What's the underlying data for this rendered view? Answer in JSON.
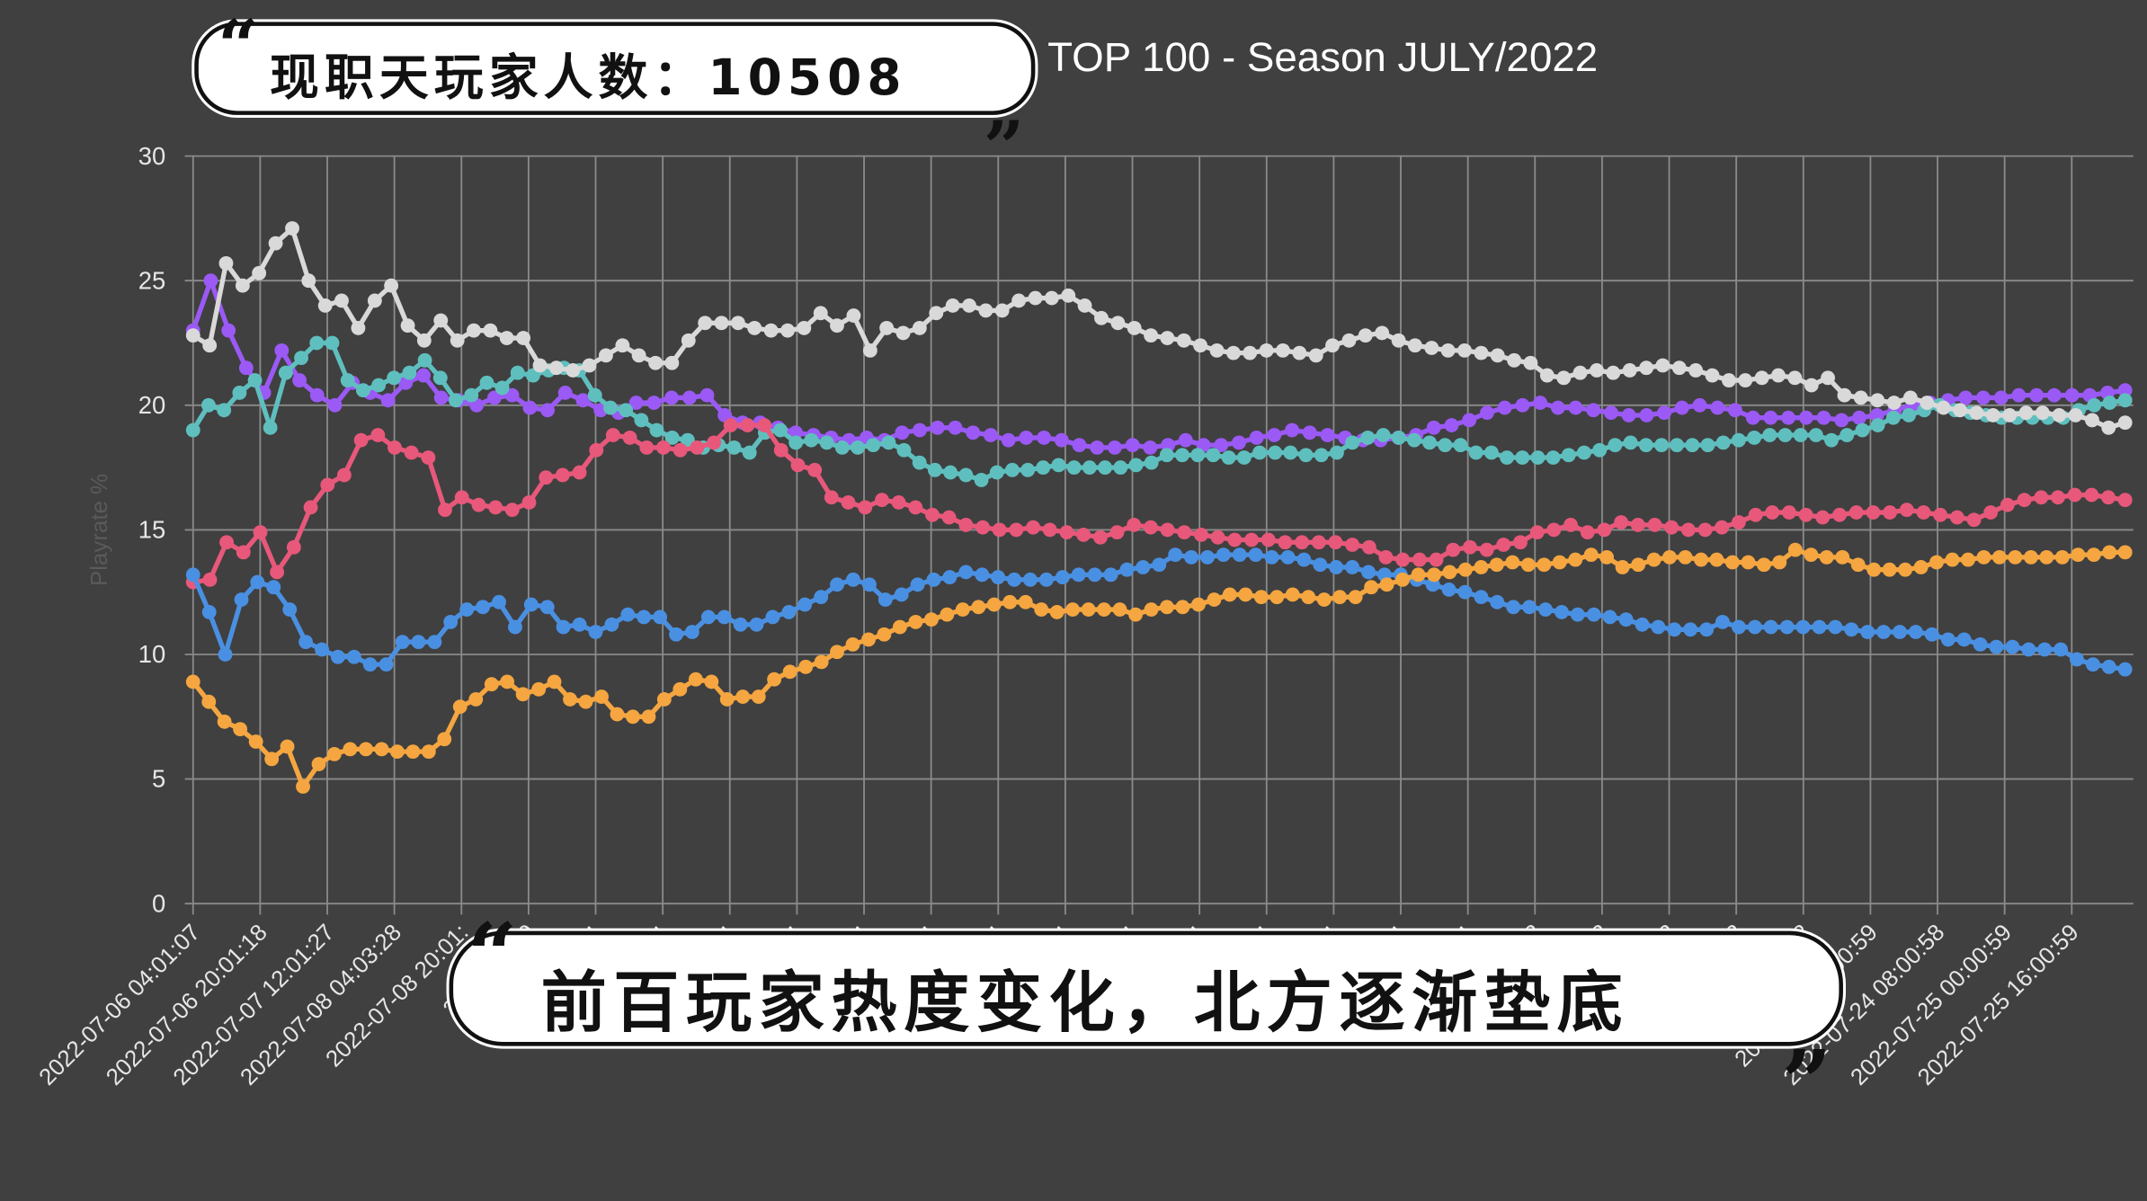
{
  "captions": {
    "top": "现职天玩家人数：10508",
    "bottom": "前百玩家热度变化，北方逐渐垫底",
    "open_quote": "“",
    "close_quote": "„"
  },
  "chart_data": {
    "type": "line",
    "title": "TOP 100 - Season JULY/2022",
    "xlabel": "",
    "ylabel": "Playrate %",
    "ylim": [
      0,
      30
    ],
    "yticks": [
      0,
      5,
      10,
      15,
      20,
      25,
      30
    ],
    "grid": true,
    "x_tick_labels": [
      "2022-07-06 04:01:07",
      "2022-07-06 20:01:18",
      "2022-07-07 12:01:27",
      "2022-07-08 04:03:28",
      "2022-07-08 20:01:",
      "2022-07-09",
      "2022-07-1",
      "2022-07-1",
      "2022-07-1",
      "2022-07-1",
      "2022-07-1",
      "2022-07-1",
      "2022-07-1",
      "2022-07-1",
      "2022-07-1",
      "2022-07-1",
      "2022-07-1",
      "2022-07-1",
      "2022-07-1",
      "2022-07-1",
      "2022-07-2",
      "2022-07-2",
      "2022-07-2",
      "2022-07-2",
      "2022-07-2",
      "2022-07-23 :00:59",
      "2022-07-24 08:00:58",
      "2022-07-25 00:00:59",
      "2022-07-25 16:00:59"
    ],
    "series": [
      {
        "color": "#9b59f5",
        "values": [
          23,
          25,
          23,
          21.5,
          20.5,
          22.2,
          21,
          20.4,
          20,
          20.9,
          20.5,
          20.2,
          20.9,
          21.2,
          20.3,
          20.2,
          20,
          20.3,
          20.4,
          19.9,
          19.8,
          20.5,
          20.2,
          19.8,
          19.7,
          20.1,
          20.1,
          20.3,
          20.3,
          20.4,
          19.6,
          19.3,
          19.3,
          19.1,
          18.9,
          18.8,
          18.7,
          18.6,
          18.7,
          18.6,
          18.9,
          19,
          19.1,
          19.1,
          18.9,
          18.8,
          18.6,
          18.7,
          18.7,
          18.6,
          18.4,
          18.3,
          18.3,
          18.4,
          18.3,
          18.4,
          18.6,
          18.4,
          18.4,
          18.5,
          18.7,
          18.8,
          19,
          18.9,
          18.8,
          18.7,
          18.6,
          18.6,
          18.7,
          18.8,
          19.1,
          19.2,
          19.4,
          19.7,
          19.9,
          20,
          20.1,
          19.9,
          19.9,
          19.8,
          19.7,
          19.6,
          19.6,
          19.7,
          19.9,
          20,
          19.9,
          19.8,
          19.5,
          19.5,
          19.5,
          19.5,
          19.5,
          19.4,
          19.5,
          19.6,
          19.8,
          20,
          20.1,
          20.2,
          20.3,
          20.3,
          20.3,
          20.4,
          20.4,
          20.4,
          20.4,
          20.4,
          20.5,
          20.6
        ]
      },
      {
        "color": "#5fbfbf",
        "values": [
          19,
          20,
          19.8,
          20.5,
          21,
          19.1,
          21.3,
          21.9,
          22.5,
          22.5,
          21,
          20.6,
          20.8,
          21.1,
          21.3,
          21.8,
          21.1,
          20.2,
          20.4,
          20.9,
          20.7,
          21.3,
          21.2,
          21.4,
          21.5,
          21.4,
          20.4,
          19.9,
          19.8,
          19.4,
          19,
          18.7,
          18.6,
          18.3,
          18.4,
          18.3,
          18.1,
          18.9,
          19,
          18.5,
          18.6,
          18.5,
          18.3,
          18.3,
          18.4,
          18.5,
          18.2,
          17.7,
          17.4,
          17.3,
          17.2,
          17,
          17.3,
          17.4,
          17.4,
          17.5,
          17.6,
          17.5,
          17.5,
          17.5,
          17.5,
          17.6,
          17.7,
          18,
          18,
          18,
          18,
          17.9,
          17.9,
          18.1,
          18.1,
          18.1,
          18,
          18,
          18.1,
          18.5,
          18.7,
          18.8,
          18.7,
          18.6,
          18.5,
          18.4,
          18.4,
          18.1,
          18.1,
          17.9,
          17.9,
          17.9,
          17.9,
          18,
          18.1,
          18.2,
          18.4,
          18.5,
          18.4,
          18.4,
          18.4,
          18.4,
          18.4,
          18.5,
          18.6,
          18.7,
          18.8,
          18.8,
          18.8,
          18.8,
          18.6,
          18.8,
          19,
          19.2,
          19.5,
          19.6,
          19.8,
          20,
          19.8,
          19.7,
          19.6,
          19.5,
          19.5,
          19.5,
          19.5,
          19.5,
          19.8,
          20,
          20.1,
          20.2
        ]
      },
      {
        "color": "#d9d9d9",
        "values": [
          22.8,
          22.4,
          25.7,
          24.8,
          25.3,
          26.5,
          27.1,
          25,
          24,
          24.2,
          23.1,
          24.2,
          24.8,
          23.2,
          22.6,
          23.4,
          22.6,
          23,
          23,
          22.7,
          22.7,
          21.6,
          21.5,
          21.4,
          21.6,
          22,
          22.4,
          22,
          21.7,
          21.7,
          22.6,
          23.3,
          23.3,
          23.3,
          23.1,
          23,
          23,
          23.1,
          23.7,
          23.2,
          23.6,
          22.2,
          23.1,
          22.9,
          23.1,
          23.7,
          24,
          24,
          23.8,
          23.8,
          24.2,
          24.3,
          24.3,
          24.4,
          24,
          23.5,
          23.3,
          23.1,
          22.8,
          22.7,
          22.6,
          22.4,
          22.2,
          22.1,
          22.1,
          22.2,
          22.2,
          22.1,
          22,
          22.4,
          22.6,
          22.8,
          22.9,
          22.6,
          22.4,
          22.3,
          22.2,
          22.2,
          22.1,
          22,
          21.8,
          21.7,
          21.2,
          21.1,
          21.3,
          21.4,
          21.3,
          21.4,
          21.5,
          21.6,
          21.5,
          21.4,
          21.2,
          21,
          21,
          21.1,
          21.2,
          21.1,
          20.8,
          21.1,
          20.4,
          20.3,
          20.2,
          20.1,
          20.3,
          20.1,
          19.9,
          19.8,
          19.7,
          19.6,
          19.6,
          19.7,
          19.7,
          19.6,
          19.6,
          19.4,
          19.1,
          19.3
        ]
      },
      {
        "color": "#e8587a",
        "values": [
          12.9,
          13,
          14.5,
          14.1,
          14.9,
          13.3,
          14.3,
          15.9,
          16.8,
          17.2,
          18.6,
          18.8,
          18.3,
          18.1,
          17.9,
          15.8,
          16.3,
          16,
          15.9,
          15.8,
          16.1,
          17.1,
          17.2,
          17.3,
          18.2,
          18.8,
          18.7,
          18.3,
          18.3,
          18.2,
          18.3,
          18.5,
          19.2,
          19.2,
          19.2,
          18.2,
          17.6,
          17.4,
          16.3,
          16.1,
          15.9,
          16.2,
          16.1,
          15.9,
          15.6,
          15.5,
          15.2,
          15.1,
          15,
          15,
          15.1,
          15,
          14.9,
          14.8,
          14.7,
          14.9,
          15.2,
          15.1,
          15,
          14.9,
          14.8,
          14.7,
          14.6,
          14.6,
          14.6,
          14.5,
          14.5,
          14.5,
          14.5,
          14.4,
          14.3,
          13.9,
          13.8,
          13.8,
          13.8,
          14.2,
          14.3,
          14.2,
          14.4,
          14.5,
          14.9,
          15,
          15.2,
          14.9,
          15,
          15.3,
          15.2,
          15.2,
          15.1,
          15,
          15,
          15.1,
          15.3,
          15.6,
          15.7,
          15.7,
          15.6,
          15.5,
          15.6,
          15.7,
          15.7,
          15.7,
          15.8,
          15.7,
          15.6,
          15.5,
          15.4,
          15.7,
          16,
          16.2,
          16.3,
          16.3,
          16.4,
          16.4,
          16.3,
          16.2
        ]
      },
      {
        "color": "#4a90e2",
        "values": [
          13.2,
          11.7,
          10,
          12.2,
          12.9,
          12.7,
          11.8,
          10.5,
          10.2,
          9.9,
          9.9,
          9.6,
          9.6,
          10.5,
          10.5,
          10.5,
          11.3,
          11.8,
          11.9,
          12.1,
          11.1,
          12,
          11.9,
          11.1,
          11.2,
          10.9,
          11.2,
          11.6,
          11.5,
          11.5,
          10.8,
          10.9,
          11.5,
          11.5,
          11.2,
          11.2,
          11.5,
          11.7,
          12,
          12.3,
          12.8,
          13,
          12.8,
          12.2,
          12.4,
          12.8,
          13,
          13.1,
          13.3,
          13.2,
          13.1,
          13,
          13,
          13,
          13.1,
          13.2,
          13.2,
          13.2,
          13.4,
          13.5,
          13.6,
          14,
          13.9,
          13.9,
          14,
          14,
          14,
          13.9,
          13.9,
          13.8,
          13.6,
          13.5,
          13.5,
          13.3,
          13.2,
          13.2,
          13,
          12.8,
          12.6,
          12.5,
          12.3,
          12.1,
          11.9,
          11.9,
          11.8,
          11.7,
          11.6,
          11.6,
          11.5,
          11.4,
          11.2,
          11.1,
          11,
          11,
          11,
          11.3,
          11.1,
          11.1,
          11.1,
          11.1,
          11.1,
          11.1,
          11.1,
          11,
          10.9,
          10.9,
          10.9,
          10.9,
          10.8,
          10.6,
          10.6,
          10.4,
          10.3,
          10.3,
          10.2,
          10.2,
          10.2,
          9.8,
          9.6,
          9.5,
          9.4
        ]
      },
      {
        "color": "#f5a640",
        "values": [
          8.9,
          8.1,
          7.3,
          7,
          6.5,
          5.8,
          6.3,
          4.7,
          5.6,
          6,
          6.2,
          6.2,
          6.2,
          6.1,
          6.1,
          6.1,
          6.6,
          7.9,
          8.2,
          8.8,
          8.9,
          8.4,
          8.6,
          8.9,
          8.2,
          8.1,
          8.3,
          7.6,
          7.5,
          7.5,
          8.2,
          8.6,
          9,
          8.9,
          8.2,
          8.3,
          8.3,
          9,
          9.3,
          9.5,
          9.7,
          10.1,
          10.4,
          10.6,
          10.8,
          11.1,
          11.3,
          11.4,
          11.6,
          11.8,
          11.9,
          12,
          12.1,
          12.1,
          11.8,
          11.7,
          11.8,
          11.8,
          11.8,
          11.8,
          11.6,
          11.8,
          11.9,
          11.9,
          12,
          12.2,
          12.4,
          12.4,
          12.3,
          12.3,
          12.4,
          12.3,
          12.2,
          12.3,
          12.3,
          12.7,
          12.8,
          13,
          13.2,
          13.2,
          13.3,
          13.4,
          13.5,
          13.6,
          13.7,
          13.6,
          13.6,
          13.7,
          13.8,
          14,
          13.9,
          13.5,
          13.6,
          13.8,
          13.9,
          13.9,
          13.8,
          13.8,
          13.7,
          13.7,
          13.6,
          13.7,
          14.2,
          14,
          13.9,
          13.9,
          13.6,
          13.4,
          13.4,
          13.4,
          13.5,
          13.7,
          13.8,
          13.8,
          13.9,
          13.9,
          13.9,
          13.9,
          13.9,
          13.9,
          14,
          14,
          14.1,
          14.1
        ]
      }
    ]
  }
}
